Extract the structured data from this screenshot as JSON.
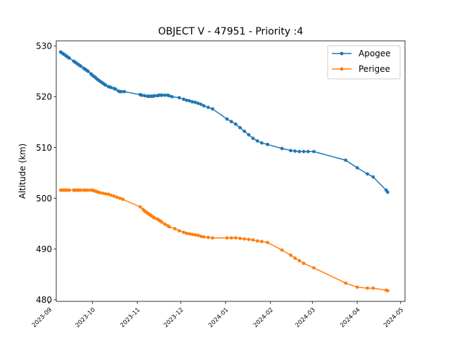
{
  "chart_data": {
    "type": "line",
    "title": "OBJECT V - 47951 - Priority :4",
    "xlabel": "",
    "ylabel": "Altitude (km)",
    "ylim": [
      479.7,
      531
    ],
    "xlim": [
      "2023-09-06",
      "2024-05-04"
    ],
    "yticks": [
      480,
      490,
      500,
      510,
      520,
      530
    ],
    "xticks": [
      "2023-09",
      "2023-10",
      "2023-11",
      "2023-12",
      "2024-01",
      "2024-02",
      "2024-03",
      "2024-04",
      "2024-05"
    ],
    "legend_position": "top-right",
    "grid": false,
    "series": [
      {
        "name": "Apogee",
        "color": "#1f77b4",
        "points": [
          [
            "2023-09-09",
            528.8
          ],
          [
            "2023-09-10",
            528.6
          ],
          [
            "2023-09-11",
            528.4
          ],
          [
            "2023-09-12",
            528.2
          ],
          [
            "2023-09-13",
            528.0
          ],
          [
            "2023-09-14",
            527.8
          ],
          [
            "2023-09-15",
            527.6
          ],
          [
            "2023-09-18",
            527.0
          ],
          [
            "2023-09-19",
            526.8
          ],
          [
            "2023-09-20",
            526.6
          ],
          [
            "2023-09-21",
            526.4
          ],
          [
            "2023-09-22",
            526.2
          ],
          [
            "2023-09-23",
            526.0
          ],
          [
            "2023-09-25",
            525.6
          ],
          [
            "2023-09-26",
            525.4
          ],
          [
            "2023-09-27",
            525.2
          ],
          [
            "2023-09-28",
            525.0
          ],
          [
            "2023-09-30",
            524.5
          ],
          [
            "2023-10-01",
            524.2
          ],
          [
            "2023-10-02",
            524.0
          ],
          [
            "2023-10-03",
            523.8
          ],
          [
            "2023-10-04",
            523.5
          ],
          [
            "2023-10-05",
            523.3
          ],
          [
            "2023-10-06",
            523.1
          ],
          [
            "2023-10-07",
            522.9
          ],
          [
            "2023-10-08",
            522.7
          ],
          [
            "2023-10-09",
            522.5
          ],
          [
            "2023-10-10",
            522.3
          ],
          [
            "2023-10-12",
            522.0
          ],
          [
            "2023-10-13",
            521.9
          ],
          [
            "2023-10-14",
            521.8
          ],
          [
            "2023-10-16",
            521.6
          ],
          [
            "2023-10-17",
            521.5
          ],
          [
            "2023-10-19",
            521.1
          ],
          [
            "2023-10-20",
            521.0
          ],
          [
            "2023-10-21",
            521.0
          ],
          [
            "2023-10-23",
            521.0
          ],
          [
            "2023-11-03",
            520.4
          ],
          [
            "2023-11-04",
            520.3
          ],
          [
            "2023-11-06",
            520.2
          ],
          [
            "2023-11-08",
            520.1
          ],
          [
            "2023-11-09",
            520.1
          ],
          [
            "2023-11-10",
            520.1
          ],
          [
            "2023-11-11",
            520.1
          ],
          [
            "2023-11-12",
            520.1
          ],
          [
            "2023-11-13",
            520.2
          ],
          [
            "2023-11-15",
            520.2
          ],
          [
            "2023-11-16",
            520.3
          ],
          [
            "2023-11-17",
            520.3
          ],
          [
            "2023-11-18",
            520.3
          ],
          [
            "2023-11-20",
            520.3
          ],
          [
            "2023-11-22",
            520.3
          ],
          [
            "2023-11-23",
            520.2
          ],
          [
            "2023-11-25",
            520.0
          ],
          [
            "2023-11-30",
            519.8
          ],
          [
            "2023-12-03",
            519.5
          ],
          [
            "2023-12-05",
            519.3
          ],
          [
            "2023-12-07",
            519.2
          ],
          [
            "2023-12-09",
            519.0
          ],
          [
            "2023-12-11",
            518.9
          ],
          [
            "2023-12-13",
            518.7
          ],
          [
            "2023-12-15",
            518.5
          ],
          [
            "2023-12-17",
            518.2
          ],
          [
            "2023-12-20",
            517.9
          ],
          [
            "2023-12-23",
            517.6
          ],
          [
            "2024-01-02",
            515.6
          ],
          [
            "2024-01-05",
            515.1
          ],
          [
            "2024-01-08",
            514.6
          ],
          [
            "2024-01-11",
            513.9
          ],
          [
            "2024-01-14",
            513.2
          ],
          [
            "2024-01-17",
            512.5
          ],
          [
            "2024-01-20",
            511.8
          ],
          [
            "2024-01-23",
            511.3
          ],
          [
            "2024-01-26",
            510.9
          ],
          [
            "2024-01-30",
            510.6
          ],
          [
            "2024-02-09",
            509.8
          ],
          [
            "2024-02-15",
            509.4
          ],
          [
            "2024-02-18",
            509.3
          ],
          [
            "2024-02-21",
            509.2
          ],
          [
            "2024-02-24",
            509.2
          ],
          [
            "2024-02-27",
            509.2
          ],
          [
            "2024-03-02",
            509.2
          ],
          [
            "2024-03-24",
            507.5
          ],
          [
            "2024-04-01",
            506.0
          ],
          [
            "2024-04-08",
            504.8
          ],
          [
            "2024-04-12",
            504.2
          ],
          [
            "2024-04-21",
            501.6
          ],
          [
            "2024-04-22",
            501.2
          ]
        ]
      },
      {
        "name": "Perigee",
        "color": "#ff7f0e",
        "points": [
          [
            "2023-09-09",
            501.6
          ],
          [
            "2023-09-10",
            501.6
          ],
          [
            "2023-09-11",
            501.6
          ],
          [
            "2023-09-12",
            501.6
          ],
          [
            "2023-09-13",
            501.6
          ],
          [
            "2023-09-14",
            501.6
          ],
          [
            "2023-09-15",
            501.6
          ],
          [
            "2023-09-18",
            501.6
          ],
          [
            "2023-09-19",
            501.6
          ],
          [
            "2023-09-20",
            501.6
          ],
          [
            "2023-09-21",
            501.6
          ],
          [
            "2023-09-22",
            501.6
          ],
          [
            "2023-09-23",
            501.6
          ],
          [
            "2023-09-25",
            501.6
          ],
          [
            "2023-09-26",
            501.6
          ],
          [
            "2023-09-27",
            501.6
          ],
          [
            "2023-09-28",
            501.6
          ],
          [
            "2023-09-30",
            501.6
          ],
          [
            "2023-10-01",
            501.6
          ],
          [
            "2023-10-02",
            501.5
          ],
          [
            "2023-10-03",
            501.4
          ],
          [
            "2023-10-04",
            501.3
          ],
          [
            "2023-10-05",
            501.2
          ],
          [
            "2023-10-06",
            501.1
          ],
          [
            "2023-10-08",
            501.0
          ],
          [
            "2023-10-10",
            500.9
          ],
          [
            "2023-10-12",
            500.8
          ],
          [
            "2023-10-14",
            500.6
          ],
          [
            "2023-10-16",
            500.4
          ],
          [
            "2023-10-18",
            500.2
          ],
          [
            "2023-10-20",
            500.0
          ],
          [
            "2023-10-22",
            499.8
          ],
          [
            "2023-11-03",
            498.3
          ],
          [
            "2023-11-05",
            497.8
          ],
          [
            "2023-11-06",
            497.5
          ],
          [
            "2023-11-07",
            497.3
          ],
          [
            "2023-11-08",
            497.1
          ],
          [
            "2023-11-09",
            496.9
          ],
          [
            "2023-11-10",
            496.7
          ],
          [
            "2023-11-11",
            496.5
          ],
          [
            "2023-11-12",
            496.3
          ],
          [
            "2023-11-13",
            496.1
          ],
          [
            "2023-11-15",
            495.9
          ],
          [
            "2023-11-16",
            495.7
          ],
          [
            "2023-11-17",
            495.5
          ],
          [
            "2023-11-18",
            495.3
          ],
          [
            "2023-11-20",
            494.9
          ],
          [
            "2023-11-22",
            494.6
          ],
          [
            "2023-11-23",
            494.4
          ],
          [
            "2023-11-27",
            494.0
          ],
          [
            "2023-11-30",
            493.6
          ],
          [
            "2023-12-03",
            493.3
          ],
          [
            "2023-12-05",
            493.1
          ],
          [
            "2023-12-07",
            493.0
          ],
          [
            "2023-12-09",
            492.9
          ],
          [
            "2023-12-11",
            492.8
          ],
          [
            "2023-12-13",
            492.7
          ],
          [
            "2023-12-15",
            492.5
          ],
          [
            "2023-12-17",
            492.4
          ],
          [
            "2023-12-20",
            492.3
          ],
          [
            "2023-12-23",
            492.2
          ],
          [
            "2024-01-02",
            492.2
          ],
          [
            "2024-01-05",
            492.2
          ],
          [
            "2024-01-08",
            492.2
          ],
          [
            "2024-01-11",
            492.1
          ],
          [
            "2024-01-14",
            492.0
          ],
          [
            "2024-01-17",
            491.9
          ],
          [
            "2024-01-20",
            491.8
          ],
          [
            "2024-01-23",
            491.6
          ],
          [
            "2024-01-26",
            491.5
          ],
          [
            "2024-01-30",
            491.3
          ],
          [
            "2024-02-09",
            489.8
          ],
          [
            "2024-02-15",
            488.8
          ],
          [
            "2024-02-18",
            488.2
          ],
          [
            "2024-02-21",
            487.7
          ],
          [
            "2024-02-24",
            487.2
          ],
          [
            "2024-03-02",
            486.3
          ],
          [
            "2024-03-24",
            483.3
          ],
          [
            "2024-04-01",
            482.5
          ],
          [
            "2024-04-08",
            482.3
          ],
          [
            "2024-04-12",
            482.3
          ],
          [
            "2024-04-21",
            481.9
          ],
          [
            "2024-04-22",
            481.8
          ]
        ]
      }
    ]
  }
}
